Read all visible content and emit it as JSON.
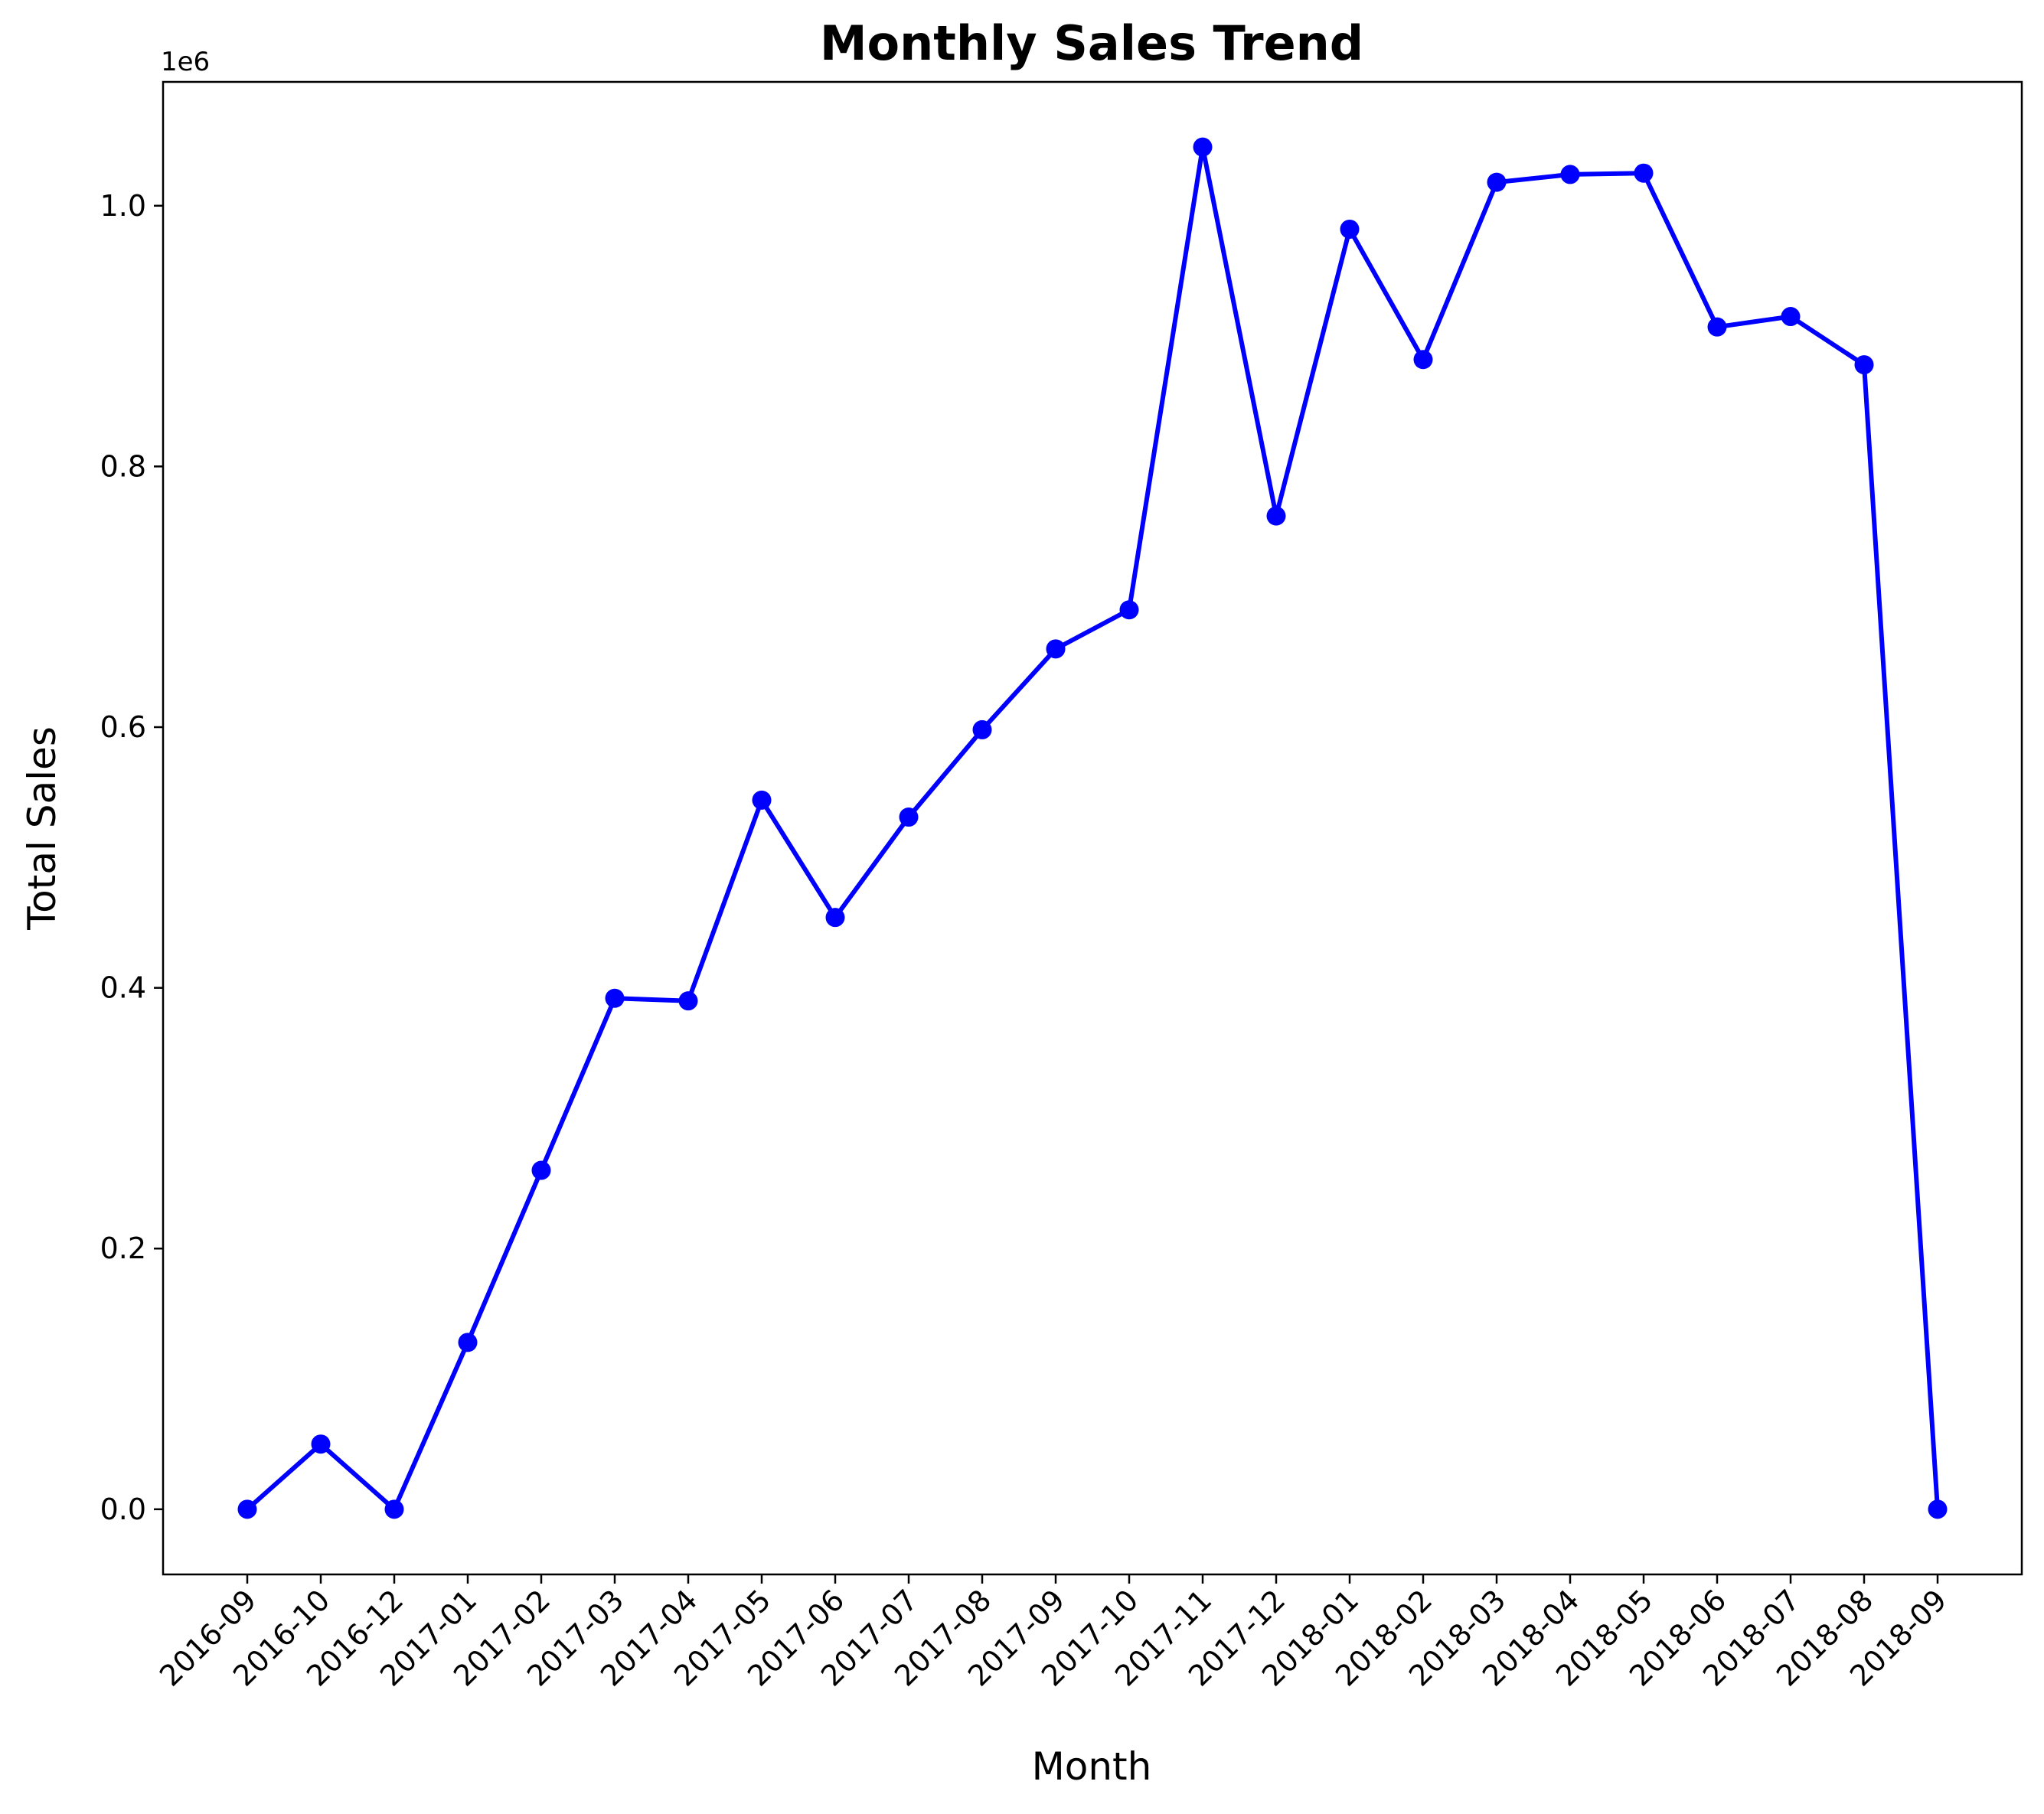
{
  "chart_data": {
    "type": "line",
    "title": "Monthly Sales Trend",
    "xlabel": "Month",
    "ylabel": "Total Sales",
    "y_offset_label": "1e6",
    "ylim": [
      -0.05,
      1.095
    ],
    "y_ticks": [
      0.0,
      0.2,
      0.4,
      0.6,
      0.8,
      1.0
    ],
    "y_tick_labels": [
      "0.0",
      "0.2",
      "0.4",
      "0.6",
      "0.8",
      "1.0"
    ],
    "grid": false,
    "x_tick_rotation": 45,
    "categories": [
      "2016-09",
      "2016-10",
      "2016-12",
      "2017-01",
      "2017-02",
      "2017-03",
      "2017-04",
      "2017-05",
      "2017-06",
      "2017-07",
      "2017-08",
      "2017-09",
      "2017-10",
      "2017-11",
      "2017-12",
      "2018-01",
      "2018-02",
      "2018-03",
      "2018-04",
      "2018-05",
      "2018-06",
      "2018-07",
      "2018-08",
      "2018-09"
    ],
    "series": [
      {
        "color": "#0000ff",
        "marker": "circle",
        "values": [
          0.0,
          0.05,
          0.0,
          0.128,
          0.26,
          0.392,
          0.39,
          0.544,
          0.454,
          0.531,
          0.598,
          0.66,
          0.69,
          1.045,
          0.762,
          0.982,
          0.882,
          1.018,
          1.024,
          1.025,
          0.907,
          0.915,
          0.878,
          0.0
        ]
      }
    ]
  }
}
